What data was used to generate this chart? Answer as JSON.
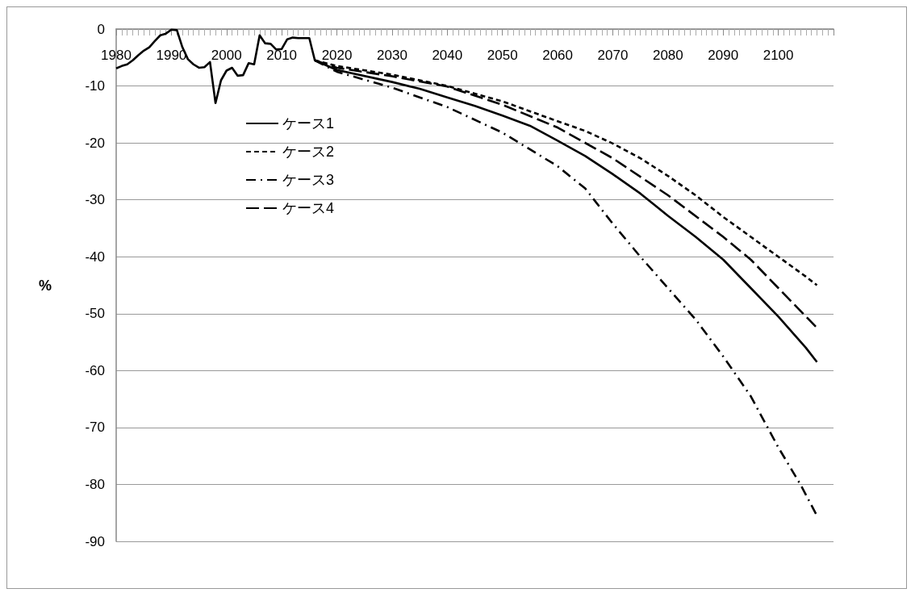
{
  "chart_data": {
    "type": "line",
    "ylabel": "%",
    "xlim": [
      1980,
      2110
    ],
    "xticks": [
      1980,
      1990,
      2000,
      2010,
      2020,
      2030,
      2040,
      2050,
      2060,
      2070,
      2080,
      2090,
      2100
    ],
    "ylim": [
      -90,
      0
    ],
    "yticks": [
      0,
      -10,
      -20,
      -30,
      -40,
      -50,
      -60,
      -70,
      -80,
      -90
    ],
    "grid": "y",
    "legend": "top left",
    "marker": "none",
    "series": [
      {
        "name": "ケース1",
        "color": "#000000",
        "line_style": "solid",
        "x": [
          1980,
          1981,
          1982,
          1983,
          1984,
          1985,
          1986,
          1987,
          1988,
          1989,
          1990,
          1991,
          1992,
          1993,
          1994,
          1995,
          1996,
          1997,
          1998,
          1999,
          2000,
          2001,
          2002,
          2003,
          2004,
          2005,
          2006,
          2007,
          2008,
          2009,
          2010,
          2011,
          2012,
          2013,
          2014,
          2015,
          2016,
          2020,
          2030,
          2035,
          2040,
          2045,
          2050,
          2055,
          2060,
          2065,
          2070,
          2075,
          2080,
          2085,
          2090,
          2095,
          2100,
          2105,
          2107
        ],
        "values": [
          -6.9,
          -6.5,
          -6.2,
          -5.5,
          -4.6,
          -3.8,
          -3.2,
          -2.1,
          -1.1,
          -0.8,
          -0.1,
          -0.2,
          -3.2,
          -5.3,
          -6.2,
          -6.8,
          -6.7,
          -5.8,
          -13.0,
          -9.0,
          -7.3,
          -6.8,
          -8.2,
          -8.1,
          -6.0,
          -6.2,
          -1.1,
          -2.5,
          -2.6,
          -3.6,
          -3.5,
          -1.8,
          -1.5,
          -1.6,
          -1.6,
          -1.6,
          -5.5,
          -7.2,
          -9.3,
          -10.5,
          -12.0,
          -13.5,
          -15.2,
          -17.0,
          -19.6,
          -22.3,
          -25.5,
          -28.9,
          -32.8,
          -36.5,
          -40.5,
          -45.5,
          -50.5,
          -56.0,
          -58.5
        ]
      },
      {
        "name": "ケース2",
        "color": "#000000",
        "line_style": "dashed",
        "x": [
          2016,
          2020,
          2030,
          2040,
          2050,
          2060,
          2065,
          2070,
          2075,
          2080,
          2085,
          2090,
          2095,
          2100,
          2105,
          2107
        ],
        "values": [
          -5.5,
          -6.5,
          -8.0,
          -10.0,
          -12.7,
          -16.2,
          -17.9,
          -20.1,
          -22.7,
          -25.8,
          -29.2,
          -33.0,
          -36.5,
          -40.0,
          -43.5,
          -45.0
        ]
      },
      {
        "name": "ケース3",
        "color": "#000000",
        "line_style": "dashdot",
        "x": [
          2016,
          2020,
          2030,
          2040,
          2050,
          2060,
          2065,
          2070,
          2075,
          2080,
          2085,
          2090,
          2095,
          2100,
          2104,
          2107
        ],
        "values": [
          -5.5,
          -7.5,
          -10.3,
          -13.7,
          -18.2,
          -24.1,
          -28.0,
          -34.2,
          -40.0,
          -45.5,
          -51.0,
          -57.5,
          -64.5,
          -73.5,
          -80.0,
          -85.5
        ]
      },
      {
        "name": "ケース4",
        "color": "#000000",
        "line_style": "longdash",
        "x": [
          2016,
          2020,
          2030,
          2040,
          2050,
          2060,
          2070,
          2080,
          2090,
          2095,
          2100,
          2105,
          2107
        ],
        "values": [
          -5.5,
          -6.8,
          -8.3,
          -10.1,
          -13.3,
          -17.3,
          -22.7,
          -29.2,
          -36.5,
          -40.5,
          -45.5,
          -50.5,
          -52.5
        ]
      }
    ]
  }
}
